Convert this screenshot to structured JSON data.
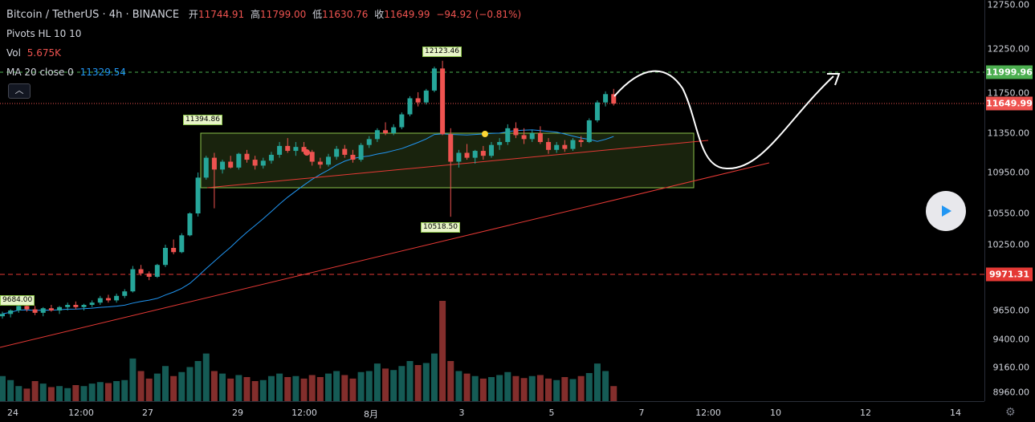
{
  "header": {
    "symbol": "Bitcoin / TetherUS · 4h · BINANCE",
    "open_label": "开",
    "open_value": "11744.91",
    "high_label": "高",
    "high_value": "11799.00",
    "low_label": "低",
    "low_value": "11630.76",
    "close_label": "收",
    "close_value": "11649.99",
    "change": "−94.92 (−0.81%)"
  },
  "indicators": [
    {
      "name": "Pivots HL 10 10",
      "value": ""
    },
    {
      "name": "Vol",
      "value": "5.675K"
    },
    {
      "name": "MA 20 close 0",
      "value": "11329.54"
    }
  ],
  "collapse_icon": "chevron-up-icon",
  "price_axis": {
    "ticks": [
      "12750.00",
      "12250.00",
      "11750.00",
      "11350.00",
      "10950.00",
      "10550.00",
      "10250.00",
      "9650.00",
      "9400.00",
      "9160.00",
      "8960.00"
    ],
    "flags": [
      {
        "value": "11999.96",
        "color": "#4caf50"
      },
      {
        "value": "11649.99",
        "color": "#ef5350"
      },
      {
        "value": "9971.31",
        "color": "#e53935"
      }
    ]
  },
  "time_axis": {
    "ticks": [
      "24",
      "12:00",
      "27",
      "29",
      "12:00",
      "8月",
      "3",
      "5",
      "7",
      "12:00",
      "10",
      "12",
      "14"
    ]
  },
  "pivot_tags": [
    "12123.46",
    "11394.86",
    "10518.50",
    "9684.00"
  ],
  "colors": {
    "up": "#26a69a",
    "down": "#ef5350",
    "ma": "#2196f3",
    "box": "#8bc34a"
  },
  "chart_data": {
    "type": "candlestick",
    "series_ohlc": [
      [
        9600,
        9640,
        9580,
        9620
      ],
      [
        9620,
        9660,
        9590,
        9650
      ],
      [
        9650,
        9700,
        9630,
        9690
      ],
      [
        9690,
        9710,
        9640,
        9660
      ],
      [
        9660,
        9690,
        9610,
        9630
      ],
      [
        9630,
        9680,
        9600,
        9670
      ],
      [
        9670,
        9700,
        9640,
        9650
      ],
      [
        9650,
        9690,
        9620,
        9680
      ],
      [
        9680,
        9720,
        9650,
        9700
      ],
      [
        9700,
        9730,
        9660,
        9680
      ],
      [
        9680,
        9710,
        9650,
        9700
      ],
      [
        9700,
        9740,
        9680,
        9720
      ],
      [
        9720,
        9780,
        9700,
        9760
      ],
      [
        9760,
        9790,
        9720,
        9740
      ],
      [
        9740,
        9800,
        9720,
        9780
      ],
      [
        9780,
        9840,
        9760,
        9820
      ],
      [
        9820,
        10050,
        9810,
        10020
      ],
      [
        10020,
        10060,
        9960,
        9980
      ],
      [
        9980,
        10000,
        9920,
        9950
      ],
      [
        9950,
        10070,
        9940,
        10060
      ],
      [
        10060,
        10250,
        10040,
        10220
      ],
      [
        10220,
        10300,
        10160,
        10180
      ],
      [
        10180,
        10360,
        10170,
        10340
      ],
      [
        10340,
        10560,
        10330,
        10550
      ],
      [
        10550,
        10950,
        10520,
        10900
      ],
      [
        10900,
        11120,
        10880,
        11100
      ],
      [
        11100,
        11150,
        10600,
        10980
      ],
      [
        10980,
        11080,
        10940,
        11060
      ],
      [
        11060,
        11120,
        10990,
        11000
      ],
      [
        11000,
        11150,
        10980,
        11140
      ],
      [
        11140,
        11180,
        11050,
        11080
      ],
      [
        11080,
        11120,
        10980,
        11020
      ],
      [
        11020,
        11100,
        10990,
        11070
      ],
      [
        11070,
        11160,
        11040,
        11130
      ],
      [
        11130,
        11260,
        11100,
        11220
      ],
      [
        11220,
        11300,
        11150,
        11170
      ],
      [
        11170,
        11260,
        11120,
        11210
      ],
      [
        11210,
        11260,
        11140,
        11160
      ],
      [
        11160,
        11180,
        11020,
        11060
      ],
      [
        11060,
        11100,
        10990,
        11030
      ],
      [
        11030,
        11140,
        11010,
        11110
      ],
      [
        11110,
        11220,
        11080,
        11190
      ],
      [
        11190,
        11230,
        11100,
        11130
      ],
      [
        11130,
        11180,
        11050,
        11080
      ],
      [
        11080,
        11250,
        11060,
        11230
      ],
      [
        11230,
        11320,
        11200,
        11290
      ],
      [
        11290,
        11400,
        11260,
        11380
      ],
      [
        11380,
        11460,
        11330,
        11350
      ],
      [
        11350,
        11440,
        11330,
        11410
      ],
      [
        11410,
        11560,
        11390,
        11540
      ],
      [
        11540,
        11720,
        11520,
        11700
      ],
      [
        11700,
        11760,
        11620,
        11660
      ],
      [
        11660,
        11800,
        11640,
        11780
      ],
      [
        11780,
        12060,
        11760,
        12040
      ],
      [
        12040,
        12123,
        11330,
        11340
      ],
      [
        11340,
        11400,
        10518,
        11060
      ],
      [
        11060,
        11180,
        11000,
        11150
      ],
      [
        11150,
        11240,
        11080,
        11100
      ],
      [
        11100,
        11180,
        11040,
        11170
      ],
      [
        11170,
        11220,
        11080,
        11120
      ],
      [
        11120,
        11260,
        11100,
        11230
      ],
      [
        11230,
        11300,
        11180,
        11260
      ],
      [
        11260,
        11440,
        11230,
        11400
      ],
      [
        11400,
        11460,
        11300,
        11330
      ],
      [
        11330,
        11400,
        11240,
        11290
      ],
      [
        11290,
        11380,
        11260,
        11350
      ],
      [
        11350,
        11420,
        11240,
        11260
      ],
      [
        11260,
        11300,
        11140,
        11180
      ],
      [
        11180,
        11260,
        11150,
        11230
      ],
      [
        11230,
        11280,
        11160,
        11190
      ],
      [
        11190,
        11300,
        11170,
        11280
      ],
      [
        11280,
        11320,
        11210,
        11260
      ],
      [
        11260,
        11500,
        11250,
        11480
      ],
      [
        11480,
        11680,
        11460,
        11660
      ],
      [
        11660,
        11770,
        11620,
        11740
      ],
      [
        11740,
        11800,
        11630,
        11650
      ]
    ],
    "volumes": [
      50,
      42,
      30,
      25,
      40,
      35,
      28,
      30,
      26,
      32,
      30,
      35,
      38,
      36,
      40,
      42,
      85,
      60,
      45,
      55,
      70,
      50,
      58,
      68,
      80,
      95,
      60,
      55,
      45,
      52,
      48,
      40,
      42,
      50,
      55,
      48,
      50,
      45,
      52,
      48,
      55,
      60,
      52,
      45,
      58,
      60,
      75,
      65,
      62,
      70,
      80,
      72,
      76,
      95,
      200,
      80,
      60,
      55,
      50,
      45,
      48,
      52,
      58,
      50,
      46,
      50,
      52,
      45,
      42,
      48,
      44,
      50,
      56,
      75,
      60,
      30
    ],
    "ma20_value": "11329.54",
    "pivots": {
      "high": [
        "12123.46",
        "11394.86"
      ],
      "low": [
        "10518.50",
        "9684.00"
      ]
    },
    "levels": [
      "11999.96",
      "11649.99",
      "9971.31"
    ],
    "ylim": [
      8900,
      12850
    ]
  }
}
